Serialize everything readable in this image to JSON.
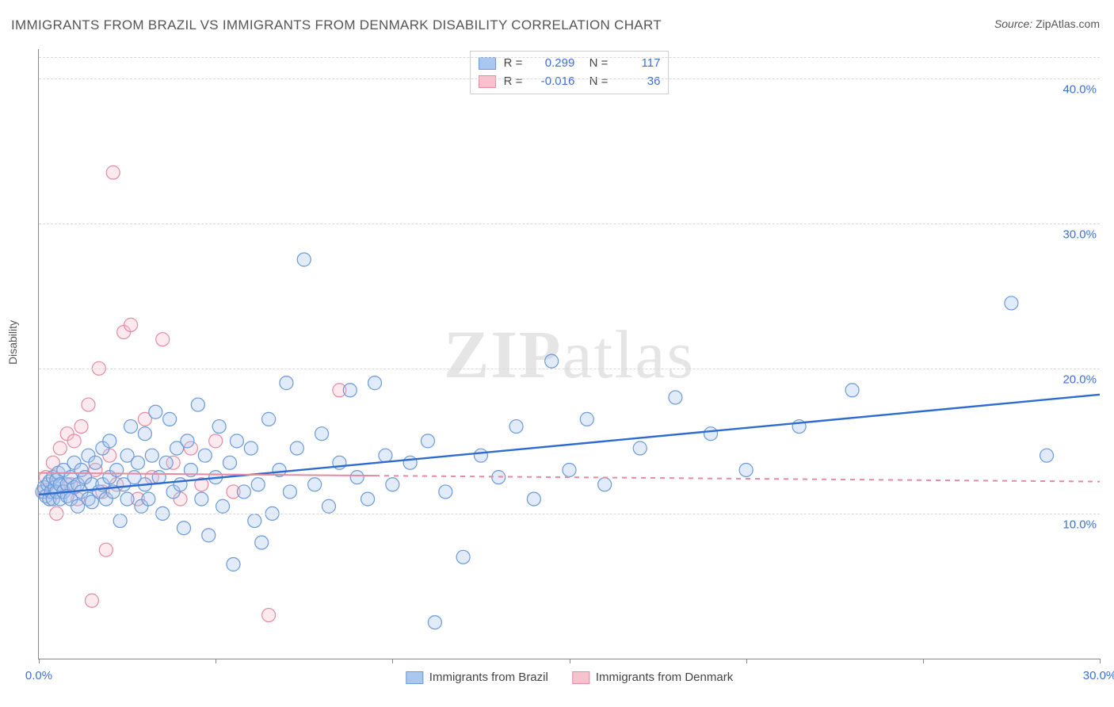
{
  "title": "IMMIGRANTS FROM BRAZIL VS IMMIGRANTS FROM DENMARK DISABILITY CORRELATION CHART",
  "source": {
    "label": "Source:",
    "value": "ZipAtlas.com"
  },
  "ylabel": "Disability",
  "watermark": {
    "part1": "ZIP",
    "part2": "atlas"
  },
  "chart": {
    "type": "scatter",
    "xlim": [
      0,
      30
    ],
    "ylim": [
      0,
      42
    ],
    "x_ticks": [
      0,
      5,
      10,
      15,
      20,
      25,
      30
    ],
    "x_tick_labels": [
      "0.0%",
      "",
      "",
      "",
      "",
      "",
      "30.0%"
    ],
    "y_gridlines": [
      10,
      20,
      30,
      40
    ],
    "y_gridline_labels": [
      "10.0%",
      "20.0%",
      "30.0%",
      "40.0%"
    ],
    "y_gridline_at_top_dashed": true,
    "background_color": "#ffffff",
    "grid_color": "#d8d8d8",
    "axis_color": "#888888",
    "tick_label_color": "#3b6fd6",
    "marker_radius": 8.5,
    "marker_stroke_width": 1.2,
    "marker_fill_opacity": 0.35,
    "series": [
      {
        "name": "Immigrants from Brazil",
        "color_fill": "#a9c7ef",
        "color_stroke": "#6a9ad8",
        "r_value": "0.299",
        "n_value": "117",
        "trend": {
          "x1": 0,
          "y1": 11.3,
          "x2": 30,
          "y2": 18.2,
          "color": "#2e6bd0",
          "width": 2.4,
          "dash": ""
        },
        "points": [
          [
            0.1,
            11.5
          ],
          [
            0.15,
            11.8
          ],
          [
            0.2,
            11.2
          ],
          [
            0.25,
            12.0
          ],
          [
            0.3,
            11.0
          ],
          [
            0.3,
            12.2
          ],
          [
            0.35,
            11.5
          ],
          [
            0.4,
            12.5
          ],
          [
            0.4,
            11.0
          ],
          [
            0.45,
            11.8
          ],
          [
            0.5,
            12.3
          ],
          [
            0.5,
            11.5
          ],
          [
            0.55,
            12.8
          ],
          [
            0.6,
            11.0
          ],
          [
            0.6,
            12.0
          ],
          [
            0.7,
            11.5
          ],
          [
            0.7,
            13.0
          ],
          [
            0.8,
            12.0
          ],
          [
            0.8,
            11.2
          ],
          [
            0.9,
            12.5
          ],
          [
            0.9,
            11.0
          ],
          [
            1.0,
            13.5
          ],
          [
            1.0,
            11.8
          ],
          [
            1.1,
            12.0
          ],
          [
            1.1,
            10.5
          ],
          [
            1.2,
            13.0
          ],
          [
            1.2,
            11.5
          ],
          [
            1.3,
            12.5
          ],
          [
            1.4,
            11.0
          ],
          [
            1.4,
            14.0
          ],
          [
            1.5,
            12.0
          ],
          [
            1.5,
            10.8
          ],
          [
            1.6,
            13.5
          ],
          [
            1.7,
            11.5
          ],
          [
            1.8,
            14.5
          ],
          [
            1.8,
            12.0
          ],
          [
            1.9,
            11.0
          ],
          [
            2.0,
            15.0
          ],
          [
            2.0,
            12.5
          ],
          [
            2.1,
            11.5
          ],
          [
            2.2,
            13.0
          ],
          [
            2.3,
            9.5
          ],
          [
            2.4,
            12.0
          ],
          [
            2.5,
            14.0
          ],
          [
            2.5,
            11.0
          ],
          [
            2.6,
            16.0
          ],
          [
            2.7,
            12.5
          ],
          [
            2.8,
            13.5
          ],
          [
            2.9,
            10.5
          ],
          [
            3.0,
            15.5
          ],
          [
            3.0,
            12.0
          ],
          [
            3.1,
            11.0
          ],
          [
            3.2,
            14.0
          ],
          [
            3.3,
            17.0
          ],
          [
            3.4,
            12.5
          ],
          [
            3.5,
            10.0
          ],
          [
            3.6,
            13.5
          ],
          [
            3.7,
            16.5
          ],
          [
            3.8,
            11.5
          ],
          [
            3.9,
            14.5
          ],
          [
            4.0,
            12.0
          ],
          [
            4.1,
            9.0
          ],
          [
            4.2,
            15.0
          ],
          [
            4.3,
            13.0
          ],
          [
            4.5,
            17.5
          ],
          [
            4.6,
            11.0
          ],
          [
            4.7,
            14.0
          ],
          [
            4.8,
            8.5
          ],
          [
            5.0,
            12.5
          ],
          [
            5.1,
            16.0
          ],
          [
            5.2,
            10.5
          ],
          [
            5.4,
            13.5
          ],
          [
            5.5,
            6.5
          ],
          [
            5.6,
            15.0
          ],
          [
            5.8,
            11.5
          ],
          [
            6.0,
            14.5
          ],
          [
            6.1,
            9.5
          ],
          [
            6.2,
            12.0
          ],
          [
            6.3,
            8.0
          ],
          [
            6.5,
            16.5
          ],
          [
            6.6,
            10.0
          ],
          [
            6.8,
            13.0
          ],
          [
            7.0,
            19.0
          ],
          [
            7.1,
            11.5
          ],
          [
            7.3,
            14.5
          ],
          [
            7.5,
            27.5
          ],
          [
            7.8,
            12.0
          ],
          [
            8.0,
            15.5
          ],
          [
            8.2,
            10.5
          ],
          [
            8.5,
            13.5
          ],
          [
            8.8,
            18.5
          ],
          [
            9.0,
            12.5
          ],
          [
            9.3,
            11.0
          ],
          [
            9.5,
            19.0
          ],
          [
            9.8,
            14.0
          ],
          [
            10.0,
            12.0
          ],
          [
            10.5,
            13.5
          ],
          [
            11.0,
            15.0
          ],
          [
            11.2,
            2.5
          ],
          [
            11.5,
            11.5
          ],
          [
            12.0,
            7.0
          ],
          [
            12.5,
            14.0
          ],
          [
            13.0,
            12.5
          ],
          [
            13.5,
            16.0
          ],
          [
            14.0,
            11.0
          ],
          [
            14.5,
            20.5
          ],
          [
            15.0,
            13.0
          ],
          [
            15.5,
            16.5
          ],
          [
            16.0,
            12.0
          ],
          [
            17.0,
            14.5
          ],
          [
            18.0,
            18.0
          ],
          [
            19.0,
            15.5
          ],
          [
            20.0,
            13.0
          ],
          [
            21.5,
            16.0
          ],
          [
            23.0,
            18.5
          ],
          [
            27.5,
            24.5
          ],
          [
            28.5,
            14.0
          ]
        ]
      },
      {
        "name": "Immigrants from Denmark",
        "color_fill": "#f5c2cd",
        "color_stroke": "#e58aa0",
        "r_value": "-0.016",
        "n_value": "36",
        "trend": {
          "x1": 0,
          "y1": 12.8,
          "x2": 30,
          "y2": 12.2,
          "color": "#e58aa0",
          "width": 2.0,
          "dash": "",
          "dash_after_x": 9.5
        },
        "points": [
          [
            0.15,
            11.5
          ],
          [
            0.2,
            12.5
          ],
          [
            0.3,
            11.0
          ],
          [
            0.4,
            13.5
          ],
          [
            0.5,
            10.0
          ],
          [
            0.6,
            14.5
          ],
          [
            0.7,
            11.5
          ],
          [
            0.8,
            15.5
          ],
          [
            0.9,
            12.0
          ],
          [
            1.0,
            15.0
          ],
          [
            1.1,
            11.0
          ],
          [
            1.2,
            16.0
          ],
          [
            1.3,
            12.5
          ],
          [
            1.4,
            17.5
          ],
          [
            1.5,
            4.0
          ],
          [
            1.6,
            13.0
          ],
          [
            1.7,
            20.0
          ],
          [
            1.8,
            11.5
          ],
          [
            1.9,
            7.5
          ],
          [
            2.0,
            14.0
          ],
          [
            2.1,
            33.5
          ],
          [
            2.2,
            12.0
          ],
          [
            2.4,
            22.5
          ],
          [
            2.6,
            23.0
          ],
          [
            2.8,
            11.0
          ],
          [
            3.0,
            16.5
          ],
          [
            3.2,
            12.5
          ],
          [
            3.5,
            22.0
          ],
          [
            3.8,
            13.5
          ],
          [
            4.0,
            11.0
          ],
          [
            4.3,
            14.5
          ],
          [
            4.6,
            12.0
          ],
          [
            5.0,
            15.0
          ],
          [
            5.5,
            11.5
          ],
          [
            6.5,
            3.0
          ],
          [
            8.5,
            18.5
          ]
        ]
      }
    ]
  }
}
